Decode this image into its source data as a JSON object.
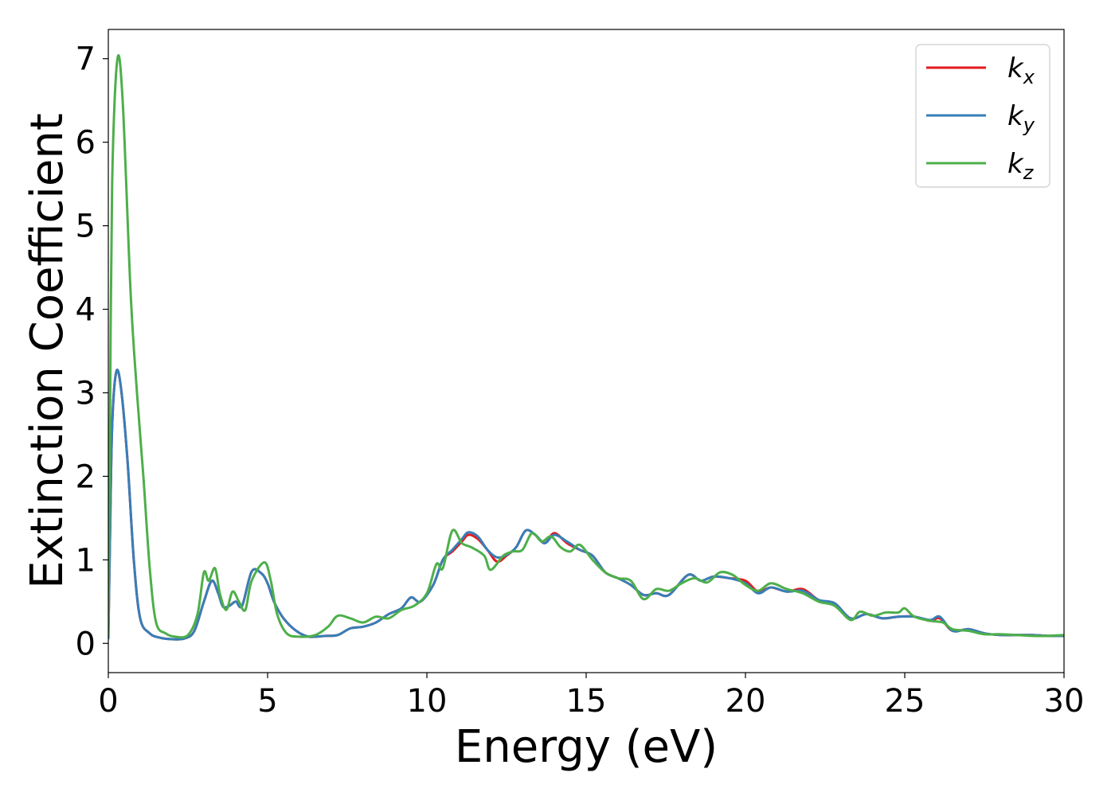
{
  "chart_data": {
    "type": "line",
    "title": "",
    "xlabel": "Energy (eV)",
    "ylabel": "Extinction Coefficient",
    "xlim": [
      0,
      30
    ],
    "ylim": [
      -0.35,
      7.35
    ],
    "xticks": [
      0,
      5,
      10,
      15,
      20,
      25,
      30
    ],
    "yticks": [
      0,
      1,
      2,
      3,
      4,
      5,
      6,
      7
    ],
    "grid": false,
    "legend_position": "top-right",
    "series": [
      {
        "name": "k_x",
        "label_main": "k",
        "label_sub": "x",
        "color": "#e41a1c",
        "points": [
          [
            0,
            0.05
          ],
          [
            0.05,
            1.2
          ],
          [
            0.12,
            2.6
          ],
          [
            0.25,
            3.25
          ],
          [
            0.4,
            3.05
          ],
          [
            0.6,
            2.2
          ],
          [
            0.8,
            1.0
          ],
          [
            1.0,
            0.3
          ],
          [
            1.3,
            0.12
          ],
          [
            1.6,
            0.07
          ],
          [
            2.0,
            0.05
          ],
          [
            2.4,
            0.06
          ],
          [
            2.7,
            0.15
          ],
          [
            3.0,
            0.5
          ],
          [
            3.25,
            0.75
          ],
          [
            3.45,
            0.6
          ],
          [
            3.6,
            0.44
          ],
          [
            3.8,
            0.45
          ],
          [
            4.0,
            0.5
          ],
          [
            4.2,
            0.45
          ],
          [
            4.5,
            0.86
          ],
          [
            4.8,
            0.84
          ],
          [
            5.0,
            0.72
          ],
          [
            5.2,
            0.5
          ],
          [
            5.5,
            0.3
          ],
          [
            5.9,
            0.15
          ],
          [
            6.3,
            0.08
          ],
          [
            6.8,
            0.09
          ],
          [
            7.2,
            0.1
          ],
          [
            7.6,
            0.18
          ],
          [
            8.0,
            0.2
          ],
          [
            8.4,
            0.25
          ],
          [
            8.8,
            0.35
          ],
          [
            9.2,
            0.42
          ],
          [
            9.5,
            0.55
          ],
          [
            9.8,
            0.5
          ],
          [
            10.2,
            0.7
          ],
          [
            10.5,
            1.0
          ],
          [
            10.8,
            1.1
          ],
          [
            11.1,
            1.22
          ],
          [
            11.3,
            1.3
          ],
          [
            11.6,
            1.25
          ],
          [
            11.9,
            1.12
          ],
          [
            12.2,
            0.98
          ],
          [
            12.5,
            1.05
          ],
          [
            12.8,
            1.15
          ],
          [
            13.1,
            1.35
          ],
          [
            13.4,
            1.3
          ],
          [
            13.7,
            1.2
          ],
          [
            14.0,
            1.32
          ],
          [
            14.4,
            1.2
          ],
          [
            14.8,
            1.12
          ],
          [
            15.2,
            1.05
          ],
          [
            15.6,
            0.85
          ],
          [
            16.0,
            0.78
          ],
          [
            16.4,
            0.7
          ],
          [
            16.8,
            0.58
          ],
          [
            17.2,
            0.6
          ],
          [
            17.6,
            0.58
          ],
          [
            18.2,
            0.82
          ],
          [
            18.6,
            0.75
          ],
          [
            19.0,
            0.8
          ],
          [
            19.5,
            0.78
          ],
          [
            20.0,
            0.75
          ],
          [
            20.4,
            0.62
          ],
          [
            20.8,
            0.67
          ],
          [
            21.3,
            0.62
          ],
          [
            21.8,
            0.65
          ],
          [
            22.3,
            0.52
          ],
          [
            22.8,
            0.48
          ],
          [
            23.3,
            0.3
          ],
          [
            23.8,
            0.35
          ],
          [
            24.3,
            0.3
          ],
          [
            24.8,
            0.32
          ],
          [
            25.3,
            0.32
          ],
          [
            25.8,
            0.27
          ],
          [
            26.1,
            0.3
          ],
          [
            26.5,
            0.15
          ],
          [
            27.0,
            0.17
          ],
          [
            27.5,
            0.12
          ],
          [
            28.0,
            0.1
          ],
          [
            28.5,
            0.1
          ],
          [
            29.0,
            0.1
          ],
          [
            29.5,
            0.09
          ],
          [
            30.0,
            0.09
          ]
        ]
      },
      {
        "name": "k_y",
        "label_main": "k",
        "label_sub": "y",
        "color": "#377eb8",
        "points": [
          [
            0,
            0.05
          ],
          [
            0.05,
            1.2
          ],
          [
            0.12,
            2.6
          ],
          [
            0.25,
            3.25
          ],
          [
            0.4,
            3.05
          ],
          [
            0.6,
            2.2
          ],
          [
            0.8,
            1.0
          ],
          [
            1.0,
            0.3
          ],
          [
            1.3,
            0.12
          ],
          [
            1.6,
            0.07
          ],
          [
            2.0,
            0.05
          ],
          [
            2.4,
            0.06
          ],
          [
            2.7,
            0.15
          ],
          [
            3.0,
            0.5
          ],
          [
            3.25,
            0.75
          ],
          [
            3.45,
            0.6
          ],
          [
            3.6,
            0.44
          ],
          [
            3.8,
            0.45
          ],
          [
            4.0,
            0.5
          ],
          [
            4.2,
            0.45
          ],
          [
            4.5,
            0.86
          ],
          [
            4.8,
            0.84
          ],
          [
            5.0,
            0.72
          ],
          [
            5.2,
            0.5
          ],
          [
            5.5,
            0.3
          ],
          [
            5.9,
            0.15
          ],
          [
            6.3,
            0.08
          ],
          [
            6.8,
            0.09
          ],
          [
            7.2,
            0.1
          ],
          [
            7.6,
            0.18
          ],
          [
            8.0,
            0.2
          ],
          [
            8.4,
            0.25
          ],
          [
            8.8,
            0.35
          ],
          [
            9.2,
            0.42
          ],
          [
            9.5,
            0.55
          ],
          [
            9.8,
            0.5
          ],
          [
            10.2,
            0.7
          ],
          [
            10.5,
            1.0
          ],
          [
            10.8,
            1.12
          ],
          [
            11.1,
            1.25
          ],
          [
            11.3,
            1.33
          ],
          [
            11.6,
            1.28
          ],
          [
            11.9,
            1.12
          ],
          [
            12.2,
            1.03
          ],
          [
            12.5,
            1.06
          ],
          [
            12.8,
            1.15
          ],
          [
            13.1,
            1.35
          ],
          [
            13.4,
            1.3
          ],
          [
            13.7,
            1.2
          ],
          [
            14.0,
            1.3
          ],
          [
            14.4,
            1.22
          ],
          [
            14.8,
            1.12
          ],
          [
            15.2,
            1.05
          ],
          [
            15.6,
            0.85
          ],
          [
            16.0,
            0.78
          ],
          [
            16.4,
            0.7
          ],
          [
            16.8,
            0.58
          ],
          [
            17.2,
            0.6
          ],
          [
            17.6,
            0.58
          ],
          [
            18.2,
            0.82
          ],
          [
            18.6,
            0.75
          ],
          [
            19.0,
            0.8
          ],
          [
            19.5,
            0.78
          ],
          [
            20.0,
            0.72
          ],
          [
            20.4,
            0.6
          ],
          [
            20.8,
            0.67
          ],
          [
            21.3,
            0.62
          ],
          [
            21.8,
            0.63
          ],
          [
            22.3,
            0.52
          ],
          [
            22.8,
            0.48
          ],
          [
            23.3,
            0.3
          ],
          [
            23.8,
            0.35
          ],
          [
            24.3,
            0.3
          ],
          [
            24.8,
            0.32
          ],
          [
            25.3,
            0.32
          ],
          [
            25.8,
            0.28
          ],
          [
            26.1,
            0.32
          ],
          [
            26.5,
            0.15
          ],
          [
            27.0,
            0.17
          ],
          [
            27.5,
            0.12
          ],
          [
            28.0,
            0.1
          ],
          [
            28.5,
            0.1
          ],
          [
            29.0,
            0.1
          ],
          [
            29.5,
            0.09
          ],
          [
            30.0,
            0.09
          ]
        ]
      },
      {
        "name": "k_z",
        "label_main": "k",
        "label_sub": "z",
        "color": "#4daf4a",
        "points": [
          [
            0,
            0.1
          ],
          [
            0.05,
            2.5
          ],
          [
            0.12,
            5.5
          ],
          [
            0.28,
            6.98
          ],
          [
            0.45,
            6.5
          ],
          [
            0.7,
            4.2
          ],
          [
            0.9,
            3.0
          ],
          [
            1.1,
            2.0
          ],
          [
            1.3,
            0.9
          ],
          [
            1.5,
            0.25
          ],
          [
            1.8,
            0.12
          ],
          [
            2.1,
            0.08
          ],
          [
            2.5,
            0.1
          ],
          [
            2.8,
            0.35
          ],
          [
            3.0,
            0.85
          ],
          [
            3.15,
            0.75
          ],
          [
            3.35,
            0.9
          ],
          [
            3.5,
            0.6
          ],
          [
            3.7,
            0.4
          ],
          [
            3.9,
            0.62
          ],
          [
            4.1,
            0.5
          ],
          [
            4.3,
            0.4
          ],
          [
            4.5,
            0.75
          ],
          [
            4.9,
            0.97
          ],
          [
            5.1,
            0.75
          ],
          [
            5.3,
            0.35
          ],
          [
            5.6,
            0.12
          ],
          [
            6.0,
            0.08
          ],
          [
            6.5,
            0.1
          ],
          [
            6.9,
            0.2
          ],
          [
            7.2,
            0.33
          ],
          [
            7.6,
            0.3
          ],
          [
            8.0,
            0.25
          ],
          [
            8.4,
            0.32
          ],
          [
            8.8,
            0.3
          ],
          [
            9.2,
            0.4
          ],
          [
            9.6,
            0.45
          ],
          [
            10.0,
            0.6
          ],
          [
            10.3,
            0.95
          ],
          [
            10.5,
            0.9
          ],
          [
            10.8,
            1.35
          ],
          [
            11.1,
            1.2
          ],
          [
            11.4,
            1.15
          ],
          [
            11.8,
            1.05
          ],
          [
            12.0,
            0.88
          ],
          [
            12.4,
            1.05
          ],
          [
            12.7,
            1.1
          ],
          [
            13.0,
            1.12
          ],
          [
            13.3,
            1.32
          ],
          [
            13.6,
            1.22
          ],
          [
            13.9,
            1.28
          ],
          [
            14.2,
            1.15
          ],
          [
            14.5,
            1.1
          ],
          [
            14.8,
            1.18
          ],
          [
            15.2,
            1.0
          ],
          [
            15.6,
            0.85
          ],
          [
            16.0,
            0.78
          ],
          [
            16.4,
            0.75
          ],
          [
            16.8,
            0.53
          ],
          [
            17.2,
            0.65
          ],
          [
            17.6,
            0.63
          ],
          [
            18.0,
            0.72
          ],
          [
            18.4,
            0.78
          ],
          [
            18.8,
            0.73
          ],
          [
            19.2,
            0.85
          ],
          [
            19.6,
            0.82
          ],
          [
            20.0,
            0.7
          ],
          [
            20.4,
            0.63
          ],
          [
            20.8,
            0.72
          ],
          [
            21.3,
            0.65
          ],
          [
            21.8,
            0.6
          ],
          [
            22.3,
            0.5
          ],
          [
            22.8,
            0.45
          ],
          [
            23.3,
            0.28
          ],
          [
            23.6,
            0.38
          ],
          [
            24.0,
            0.33
          ],
          [
            24.4,
            0.37
          ],
          [
            24.8,
            0.37
          ],
          [
            25.0,
            0.42
          ],
          [
            25.3,
            0.32
          ],
          [
            25.8,
            0.27
          ],
          [
            26.2,
            0.25
          ],
          [
            26.5,
            0.17
          ],
          [
            27.0,
            0.15
          ],
          [
            27.5,
            0.11
          ],
          [
            28.0,
            0.11
          ],
          [
            28.5,
            0.1
          ],
          [
            29.0,
            0.09
          ],
          [
            29.5,
            0.09
          ],
          [
            30.0,
            0.1
          ]
        ]
      }
    ]
  }
}
